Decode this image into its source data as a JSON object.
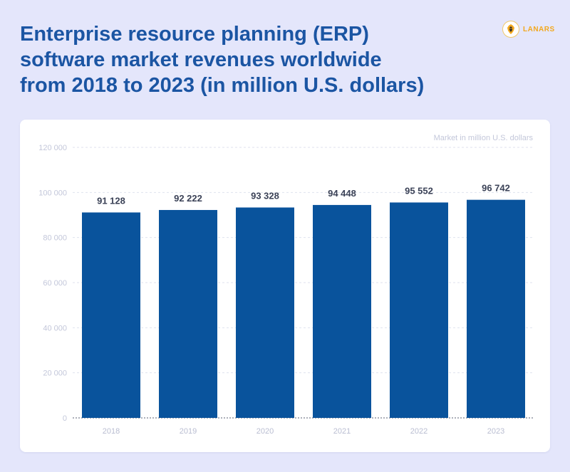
{
  "header": {
    "title_lines": [
      "Enterprise resource planning (ERP)",
      "software market revenues worldwide",
      "from 2018 to 2023 (in million U.S. dollars)"
    ]
  },
  "logo": {
    "text": "LANARS",
    "icon": "lion-head-icon"
  },
  "colors": {
    "bar": "#09539c",
    "title": "#1b55a3",
    "background": "#e4e6fb",
    "logo": "#f2a81e"
  },
  "chart_data": {
    "type": "bar",
    "title": "Enterprise resource planning (ERP) software market revenues worldwide from 2018 to 2023 (in million U.S. dollars)",
    "unit_label": "Market in million U.S. dollars",
    "categories": [
      "2018",
      "2019",
      "2020",
      "2021",
      "2022",
      "2023"
    ],
    "values": [
      91128,
      92222,
      93328,
      94448,
      95552,
      96742
    ],
    "value_labels": [
      "91 128",
      "92 222",
      "93 328",
      "94 448",
      "95 552",
      "96 742"
    ],
    "ylim": [
      0,
      120000
    ],
    "y_ticks": [
      0,
      20000,
      40000,
      60000,
      80000,
      100000,
      120000
    ],
    "y_tick_labels": [
      "0",
      "20 000",
      "40 000",
      "60 000",
      "80 000",
      "100 000",
      "120 000"
    ],
    "grid": true,
    "legend": "none"
  }
}
